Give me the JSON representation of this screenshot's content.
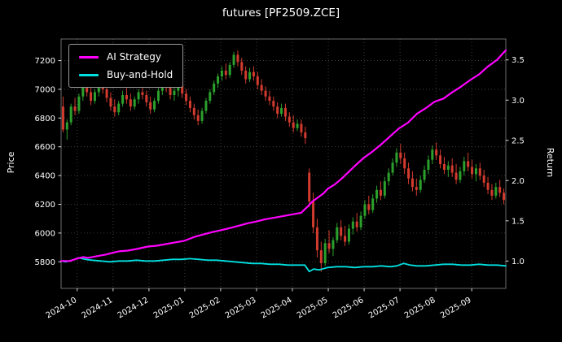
{
  "title": "futures [PF2509.ZCE]",
  "chart_data": {
    "type": "candlestick+line",
    "title": "futures [PF2509.ZCE]",
    "background": "#000000",
    "grid": true,
    "x_tick_labels": [
      "2024-10",
      "2024-11",
      "2024-12",
      "2025-01",
      "2025-02",
      "2025-03",
      "2025-04",
      "2025-05",
      "2025-06",
      "2025-07",
      "2025-08",
      "2025-09"
    ],
    "price_axis": {
      "label": "Price",
      "ticks": [
        5800,
        6000,
        6200,
        6400,
        6600,
        6800,
        7000,
        7200
      ],
      "range": [
        5615,
        7350
      ]
    },
    "return_axis": {
      "label": "Return",
      "ticks": [
        1.0,
        1.5,
        2.0,
        2.5,
        3.0,
        3.5
      ],
      "range": [
        0.66,
        3.76
      ]
    },
    "candle_colors": {
      "up": "#2ca02c",
      "down": "#d23b2e"
    },
    "legend": [
      {
        "label": "AI Strategy",
        "color": "#ff00ff"
      },
      {
        "label": "Buy-and-Hold",
        "color": "#00e0e0"
      }
    ],
    "candles": [
      [
        6880,
        6950,
        6700,
        6720
      ],
      [
        6720,
        6790,
        6650,
        6770
      ],
      [
        6770,
        6900,
        6750,
        6880
      ],
      [
        6880,
        6940,
        6820,
        6850
      ],
      [
        6850,
        6970,
        6830,
        6950
      ],
      [
        6950,
        7060,
        6920,
        7030
      ],
      [
        7030,
        7070,
        6950,
        6980
      ],
      [
        6980,
        7010,
        6890,
        6920
      ],
      [
        6920,
        7000,
        6900,
        6980
      ],
      [
        6980,
        7060,
        6950,
        7040
      ],
      [
        7040,
        7080,
        6970,
        7000
      ],
      [
        7000,
        7030,
        6910,
        6940
      ],
      [
        6940,
        6980,
        6850,
        6880
      ],
      [
        6880,
        6930,
        6810,
        6840
      ],
      [
        6840,
        6920,
        6820,
        6900
      ],
      [
        6900,
        6990,
        6880,
        6960
      ],
      [
        6960,
        7010,
        6900,
        6930
      ],
      [
        6930,
        6970,
        6850,
        6880
      ],
      [
        6880,
        6950,
        6860,
        6930
      ],
      [
        6930,
        7000,
        6900,
        6980
      ],
      [
        6980,
        7040,
        6930,
        6960
      ],
      [
        6960,
        6990,
        6880,
        6910
      ],
      [
        6910,
        6950,
        6830,
        6860
      ],
      [
        6860,
        6940,
        6840,
        6920
      ],
      [
        6920,
        7010,
        6900,
        6990
      ],
      [
        6990,
        7080,
        6960,
        7050
      ],
      [
        7050,
        7090,
        6980,
        7010
      ],
      [
        7010,
        7040,
        6930,
        6960
      ],
      [
        6960,
        7020,
        6920,
        6990
      ],
      [
        6990,
        7060,
        6950,
        7030
      ],
      [
        7030,
        7060,
        6940,
        6970
      ],
      [
        6970,
        7000,
        6890,
        6920
      ],
      [
        6920,
        6950,
        6840,
        6870
      ],
      [
        6870,
        6900,
        6790,
        6820
      ],
      [
        6820,
        6860,
        6750,
        6780
      ],
      [
        6780,
        6870,
        6760,
        6850
      ],
      [
        6850,
        6940,
        6830,
        6920
      ],
      [
        6920,
        7000,
        6900,
        6980
      ],
      [
        6980,
        7060,
        6960,
        7040
      ],
      [
        7040,
        7110,
        7010,
        7090
      ],
      [
        7090,
        7160,
        7060,
        7130
      ],
      [
        7130,
        7180,
        7070,
        7100
      ],
      [
        7100,
        7190,
        7080,
        7170
      ],
      [
        7170,
        7260,
        7150,
        7240
      ],
      [
        7240,
        7270,
        7160,
        7190
      ],
      [
        7190,
        7220,
        7100,
        7130
      ],
      [
        7130,
        7160,
        7040,
        7070
      ],
      [
        7070,
        7150,
        7050,
        7120
      ],
      [
        7120,
        7160,
        7060,
        7090
      ],
      [
        7090,
        7120,
        7000,
        7030
      ],
      [
        7030,
        7070,
        6960,
        6990
      ],
      [
        6990,
        7020,
        6920,
        6950
      ],
      [
        6950,
        6990,
        6890,
        6920
      ],
      [
        6920,
        6950,
        6850,
        6880
      ],
      [
        6880,
        6910,
        6800,
        6830
      ],
      [
        6830,
        6900,
        6810,
        6870
      ],
      [
        6870,
        6900,
        6780,
        6810
      ],
      [
        6810,
        6840,
        6740,
        6770
      ],
      [
        6770,
        6820,
        6700,
        6730
      ],
      [
        6730,
        6790,
        6710,
        6760
      ],
      [
        6760,
        6790,
        6670,
        6700
      ],
      [
        6700,
        6740,
        6620,
        6660
      ],
      [
        6420,
        6450,
        6180,
        6220
      ],
      [
        6220,
        6280,
        6000,
        6040
      ],
      [
        6040,
        6100,
        5830,
        5880
      ],
      [
        5880,
        5940,
        5730,
        5790
      ],
      [
        5790,
        5960,
        5770,
        5930
      ],
      [
        5930,
        6020,
        5860,
        5890
      ],
      [
        5890,
        5970,
        5840,
        5950
      ],
      [
        5950,
        6070,
        5930,
        6040
      ],
      [
        6040,
        6090,
        5950,
        5980
      ],
      [
        5980,
        6050,
        5910,
        5940
      ],
      [
        5940,
        6060,
        5920,
        6030
      ],
      [
        6030,
        6110,
        5990,
        6080
      ],
      [
        6080,
        6140,
        6010,
        6040
      ],
      [
        6040,
        6150,
        6020,
        6120
      ],
      [
        6120,
        6230,
        6100,
        6200
      ],
      [
        6200,
        6260,
        6130,
        6160
      ],
      [
        6160,
        6270,
        6140,
        6240
      ],
      [
        6240,
        6330,
        6210,
        6300
      ],
      [
        6300,
        6360,
        6230,
        6260
      ],
      [
        6260,
        6390,
        6240,
        6360
      ],
      [
        6360,
        6450,
        6330,
        6420
      ],
      [
        6420,
        6520,
        6400,
        6490
      ],
      [
        6490,
        6590,
        6460,
        6560
      ],
      [
        6560,
        6620,
        6480,
        6520
      ],
      [
        6520,
        6560,
        6410,
        6450
      ],
      [
        6450,
        6490,
        6340,
        6380
      ],
      [
        6380,
        6430,
        6290,
        6320
      ],
      [
        6320,
        6380,
        6260,
        6300
      ],
      [
        6300,
        6400,
        6280,
        6370
      ],
      [
        6370,
        6470,
        6350,
        6440
      ],
      [
        6440,
        6540,
        6410,
        6510
      ],
      [
        6510,
        6610,
        6480,
        6580
      ],
      [
        6580,
        6630,
        6510,
        6540
      ],
      [
        6540,
        6580,
        6450,
        6480
      ],
      [
        6480,
        6530,
        6410,
        6440
      ],
      [
        6440,
        6500,
        6390,
        6470
      ],
      [
        6470,
        6520,
        6390,
        6420
      ],
      [
        6420,
        6480,
        6340,
        6370
      ],
      [
        6370,
        6460,
        6350,
        6430
      ],
      [
        6430,
        6530,
        6400,
        6500
      ],
      [
        6500,
        6560,
        6430,
        6460
      ],
      [
        6460,
        6510,
        6380,
        6410
      ],
      [
        6410,
        6480,
        6360,
        6450
      ],
      [
        6450,
        6490,
        6370,
        6400
      ],
      [
        6400,
        6440,
        6320,
        6350
      ],
      [
        6350,
        6390,
        6270,
        6300
      ],
      [
        6300,
        6340,
        6230,
        6260
      ],
      [
        6260,
        6350,
        6240,
        6320
      ],
      [
        6320,
        6370,
        6250,
        6280
      ],
      [
        6280,
        6310,
        6200,
        6230
      ]
    ],
    "series": [
      {
        "name": "AI Strategy",
        "color": "#ff00ff",
        "width": 2.2,
        "points": [
          [
            0.0,
            1.0
          ],
          [
            0.02,
            1.0
          ],
          [
            0.035,
            1.03
          ],
          [
            0.05,
            1.05
          ],
          [
            0.06,
            1.04
          ],
          [
            0.08,
            1.06
          ],
          [
            0.1,
            1.08
          ],
          [
            0.114,
            1.1
          ],
          [
            0.13,
            1.12
          ],
          [
            0.15,
            1.13
          ],
          [
            0.17,
            1.15
          ],
          [
            0.195,
            1.18
          ],
          [
            0.215,
            1.19
          ],
          [
            0.235,
            1.21
          ],
          [
            0.255,
            1.23
          ],
          [
            0.276,
            1.25
          ],
          [
            0.3,
            1.3
          ],
          [
            0.32,
            1.33
          ],
          [
            0.34,
            1.36
          ],
          [
            0.357,
            1.38
          ],
          [
            0.38,
            1.41
          ],
          [
            0.4,
            1.44
          ],
          [
            0.42,
            1.47
          ],
          [
            0.438,
            1.49
          ],
          [
            0.46,
            1.52
          ],
          [
            0.48,
            1.54
          ],
          [
            0.5,
            1.56
          ],
          [
            0.52,
            1.58
          ],
          [
            0.54,
            1.6
          ],
          [
            0.555,
            1.68
          ],
          [
            0.565,
            1.74
          ],
          [
            0.575,
            1.78
          ],
          [
            0.59,
            1.84
          ],
          [
            0.6,
            1.9
          ],
          [
            0.615,
            1.95
          ],
          [
            0.63,
            2.02
          ],
          [
            0.645,
            2.1
          ],
          [
            0.66,
            2.18
          ],
          [
            0.68,
            2.28
          ],
          [
            0.7,
            2.36
          ],
          [
            0.72,
            2.45
          ],
          [
            0.74,
            2.55
          ],
          [
            0.76,
            2.65
          ],
          [
            0.78,
            2.72
          ],
          [
            0.8,
            2.83
          ],
          [
            0.82,
            2.9
          ],
          [
            0.84,
            2.98
          ],
          [
            0.86,
            3.02
          ],
          [
            0.88,
            3.1
          ],
          [
            0.9,
            3.17
          ],
          [
            0.92,
            3.25
          ],
          [
            0.94,
            3.32
          ],
          [
            0.96,
            3.42
          ],
          [
            0.98,
            3.5
          ],
          [
            1.0,
            3.62
          ]
        ]
      },
      {
        "name": "Buy-and-Hold",
        "color": "#00e0e0",
        "width": 1.8,
        "points": [
          [
            0.0,
            1.0
          ],
          [
            0.01,
            0.99
          ],
          [
            0.025,
            1.01
          ],
          [
            0.04,
            1.04
          ],
          [
            0.055,
            1.02
          ],
          [
            0.07,
            1.01
          ],
          [
            0.09,
            1.0
          ],
          [
            0.11,
            0.99
          ],
          [
            0.13,
            1.0
          ],
          [
            0.15,
            1.0
          ],
          [
            0.17,
            1.01
          ],
          [
            0.19,
            1.0
          ],
          [
            0.21,
            1.0
          ],
          [
            0.23,
            1.01
          ],
          [
            0.25,
            1.02
          ],
          [
            0.27,
            1.02
          ],
          [
            0.29,
            1.03
          ],
          [
            0.31,
            1.02
          ],
          [
            0.33,
            1.01
          ],
          [
            0.35,
            1.01
          ],
          [
            0.37,
            1.0
          ],
          [
            0.39,
            0.99
          ],
          [
            0.41,
            0.98
          ],
          [
            0.43,
            0.97
          ],
          [
            0.45,
            0.97
          ],
          [
            0.47,
            0.96
          ],
          [
            0.49,
            0.96
          ],
          [
            0.51,
            0.95
          ],
          [
            0.53,
            0.95
          ],
          [
            0.548,
            0.95
          ],
          [
            0.558,
            0.87
          ],
          [
            0.568,
            0.9
          ],
          [
            0.58,
            0.89
          ],
          [
            0.6,
            0.92
          ],
          [
            0.62,
            0.93
          ],
          [
            0.64,
            0.93
          ],
          [
            0.66,
            0.92
          ],
          [
            0.68,
            0.93
          ],
          [
            0.7,
            0.93
          ],
          [
            0.72,
            0.94
          ],
          [
            0.74,
            0.93
          ],
          [
            0.755,
            0.94
          ],
          [
            0.77,
            0.97
          ],
          [
            0.785,
            0.95
          ],
          [
            0.8,
            0.94
          ],
          [
            0.82,
            0.94
          ],
          [
            0.84,
            0.95
          ],
          [
            0.86,
            0.96
          ],
          [
            0.88,
            0.96
          ],
          [
            0.9,
            0.95
          ],
          [
            0.92,
            0.95
          ],
          [
            0.94,
            0.96
          ],
          [
            0.96,
            0.95
          ],
          [
            0.98,
            0.95
          ],
          [
            1.0,
            0.94
          ]
        ]
      }
    ]
  }
}
